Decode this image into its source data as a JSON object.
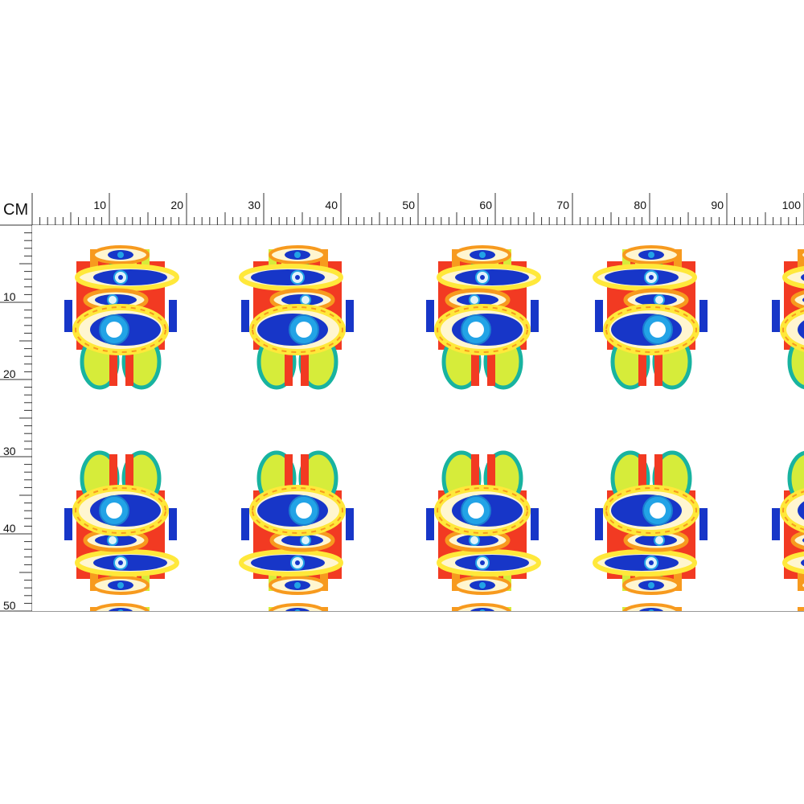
{
  "unit_label": "CM",
  "horizontal_ruler": {
    "labels": [
      "10",
      "20",
      "30",
      "40",
      "50",
      "60",
      "70",
      "80",
      "90",
      "100"
    ]
  },
  "vertical_ruler": {
    "labels": [
      "10",
      "20",
      "30",
      "40",
      "50"
    ]
  },
  "pattern": {
    "description_icon": "eye-motif-icon",
    "colors": {
      "red": "#f23a22",
      "orange": "#f79a1e",
      "yellow": "#ffe83a",
      "lime": "#d6ec3a",
      "green": "#1aa85a",
      "teal": "#18b3a0",
      "blue": "#1736c8",
      "light_blue": "#22a3e6",
      "cream": "#fff6d0",
      "white": "#ffffff"
    }
  }
}
